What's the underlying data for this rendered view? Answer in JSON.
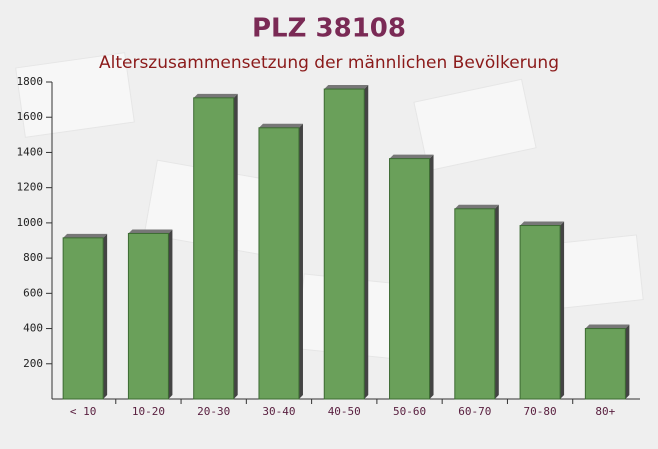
{
  "chart_data": {
    "type": "bar",
    "title": "PLZ 38108",
    "subtitle": "Alterszusammensetzung der männlichen Bevölkerung",
    "categories": [
      "< 10",
      "10-20",
      "20-30",
      "30-40",
      "40-50",
      "50-60",
      "60-70",
      "70-80",
      "80+"
    ],
    "values": [
      915,
      940,
      1710,
      1540,
      1760,
      1365,
      1080,
      985,
      400
    ],
    "color": "#6aa05a",
    "ylim": [
      0,
      1800
    ],
    "yticks": [
      200,
      400,
      600,
      800,
      1000,
      1200,
      1400,
      1600,
      1800
    ]
  }
}
